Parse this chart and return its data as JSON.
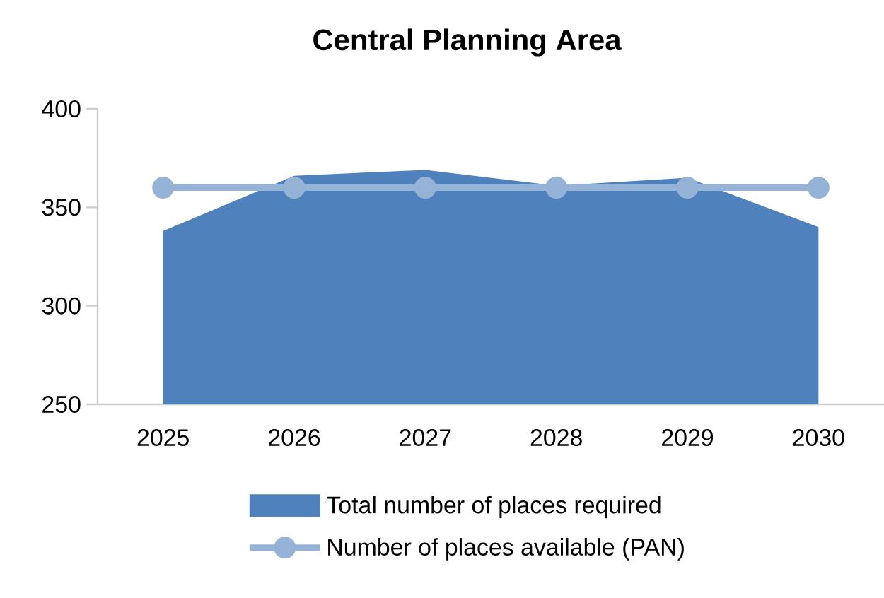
{
  "chart_data": {
    "type": "area",
    "title": "Central Planning Area",
    "categories": [
      "2025",
      "2026",
      "2027",
      "2028",
      "2029",
      "2030"
    ],
    "series": [
      {
        "name": "Total number of places required",
        "color": "#4f81bd",
        "values": [
          338,
          366,
          369,
          361,
          365,
          340
        ]
      },
      {
        "name": "Number of places available (PAN)",
        "type": "line",
        "color": "#95b3d7",
        "marker": "circle",
        "values": [
          360,
          360,
          360,
          360,
          360,
          360
        ]
      }
    ],
    "ylim": [
      250,
      400
    ],
    "yticks": [
      250,
      300,
      350,
      400
    ],
    "grid": false,
    "legend": "bottom"
  }
}
